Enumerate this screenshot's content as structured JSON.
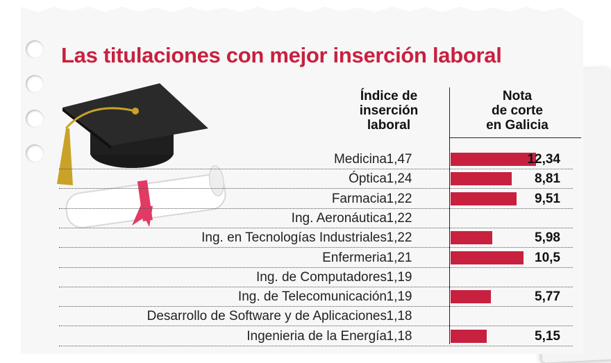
{
  "title": "Las titulaciones con mejor inserción laboral",
  "headers": {
    "index": [
      "Índice de",
      "inserción",
      "laboral"
    ],
    "note": [
      "Nota",
      "de corte",
      "en Galicia"
    ]
  },
  "colors": {
    "accent": "#c8203f"
  },
  "chart_data": {
    "type": "table",
    "title": "Las titulaciones con mejor inserción laboral",
    "columns": [
      "Índice de inserción laboral",
      "Nota de corte en Galicia"
    ],
    "note_scale_max": 14,
    "rows": [
      {
        "name": "Medicina",
        "index": "1,47",
        "note": "12,34",
        "note_value": 12.34
      },
      {
        "name": "Óptica",
        "index": "1,24",
        "note": "8,81",
        "note_value": 8.81
      },
      {
        "name": "Farmacia",
        "index": "1,22",
        "note": "9,51",
        "note_value": 9.51
      },
      {
        "name": "Ing. Aeronáutica",
        "index": "1,22",
        "note": "",
        "note_value": null
      },
      {
        "name": "Ing. en Tecnologías Industriales",
        "index": "1,22",
        "note": "5,98",
        "note_value": 5.98
      },
      {
        "name": "Enfermeria",
        "index": "1,21",
        "note": "10,5",
        "note_value": 10.5
      },
      {
        "name": "Ing. de Computadores",
        "index": "1,19",
        "note": "",
        "note_value": null
      },
      {
        "name": "Ing. de Telecomunicación",
        "index": "1,19",
        "note": "5,77",
        "note_value": 5.77
      },
      {
        "name": "Desarrollo de Software y de Aplicaciones",
        "index": "1,18",
        "note": "",
        "note_value": null
      },
      {
        "name": "Ingenieria de la Energía",
        "index": "1,18",
        "note": "5,15",
        "note_value": 5.15
      }
    ]
  }
}
